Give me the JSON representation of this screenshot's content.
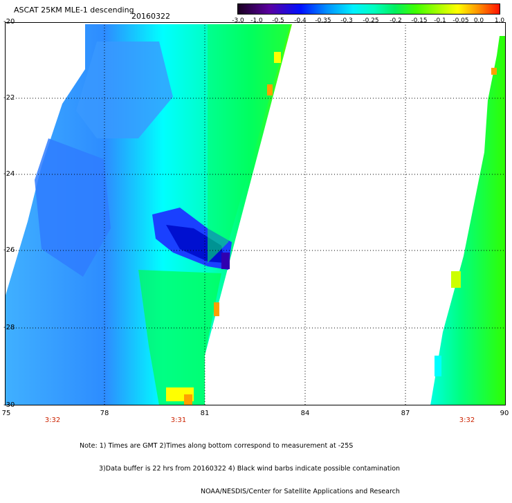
{
  "header": {
    "title": "ASCAT 25KM MLE-1 descending",
    "date": "20160322"
  },
  "colorbar": {
    "ticks": [
      "-3.0",
      "-1.0",
      "-0.5",
      "-0.4",
      "-0.35",
      "-0.3",
      "-0.25",
      "-0.2",
      "-0.15",
      "-0.1",
      "-0.05",
      "0.0",
      "1.0"
    ],
    "colors": [
      "#2a003a",
      "#5a00a0",
      "#0030ff",
      "#0090ff",
      "#00e0ff",
      "#00ffd0",
      "#00f070",
      "#40ff00",
      "#a0ff00",
      "#ffff00",
      "#ffa000",
      "#ff3000",
      "#ff0000"
    ]
  },
  "map": {
    "lat_labels": [
      "-20",
      "-22",
      "-24",
      "-26",
      "-28",
      "-30"
    ],
    "lon_labels": [
      "75",
      "78",
      "81",
      "84",
      "87",
      "90"
    ],
    "time_labels": [
      "3:32",
      "3:31",
      "3:32"
    ],
    "grid": "dotted",
    "swath_colors": {
      "deep": "#0010e0",
      "blue": "#2070ff",
      "mid": "#40b0ff",
      "cyan": "#00ffff",
      "aqua": "#00f0c0",
      "green": "#00ff60",
      "lime": "#80ff00",
      "yellow": "#ffff00",
      "orange": "#ffa000"
    }
  },
  "footer": {
    "note_line1": "Note: 1) Times are GMT 2)Times along bottom correspond to measurement at -25S",
    "note_line2": "3)Data buffer is 22 hrs from 20160322 4) Black wind barbs indicate possible contamination",
    "note_line3": "NOAA/NESDIS/Center for Satellite Applications and Research"
  }
}
